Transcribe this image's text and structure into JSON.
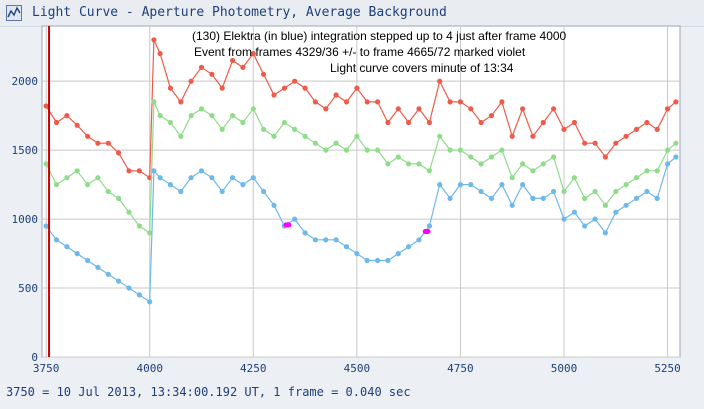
{
  "window": {
    "title": "Light Curve - Aperture Photometry, Average Background",
    "icon": "light-curve-app-icon"
  },
  "footer": {
    "text": "3750 = 10 Jul 2013, 13:34:00.192 UT, 1 frame = 0.040 sec"
  },
  "colors": {
    "background": "#eceff3",
    "plot_background": "#ffffff",
    "grid": "#c8c8c8",
    "axis_text": "#1f3f7a",
    "series_red": "#ef5b4a",
    "series_green": "#8fdc8a",
    "series_blue": "#6fb8ea",
    "event_marker": "#ff00ff",
    "cursor_line": "#cc0000"
  },
  "chart_data": {
    "type": "line",
    "title": "",
    "xlabel": "",
    "ylabel": "",
    "xlim": [
      3740,
      5280
    ],
    "ylim": [
      0,
      2400
    ],
    "x_ticks": [
      3750,
      4000,
      4250,
      4500,
      4750,
      5000,
      5250
    ],
    "y_ticks": [
      0,
      500,
      1000,
      1500,
      2000
    ],
    "grid": true,
    "annotations": [
      "(130) Elektra (in blue)  integration stepped up to 4 just after frame 4000",
      "Event from frames 4329/36 +/- to frame 4665/72  marked violet",
      "Light curve covers minute of 13:34"
    ],
    "cursor_frame": 3757,
    "event_frames": [
      [
        4329,
        4336
      ],
      [
        4665,
        4672
      ]
    ],
    "series": [
      {
        "color": "red",
        "x": [
          3750,
          3775,
          3800,
          3825,
          3850,
          3875,
          3900,
          3925,
          3950,
          3975,
          4000,
          4010,
          4025,
          4050,
          4075,
          4100,
          4125,
          4150,
          4175,
          4200,
          4225,
          4250,
          4275,
          4300,
          4325,
          4350,
          4375,
          4400,
          4425,
          4450,
          4475,
          4500,
          4525,
          4550,
          4575,
          4600,
          4625,
          4650,
          4675,
          4700,
          4725,
          4750,
          4775,
          4800,
          4825,
          4850,
          4875,
          4900,
          4925,
          4950,
          4975,
          5000,
          5025,
          5050,
          5075,
          5100,
          5125,
          5150,
          5175,
          5200,
          5225,
          5250,
          5270
        ],
        "values": [
          1820,
          1700,
          1750,
          1680,
          1600,
          1550,
          1550,
          1480,
          1350,
          1350,
          1300,
          2300,
          2200,
          1950,
          1850,
          2000,
          2100,
          2050,
          1950,
          2150,
          2100,
          2200,
          2050,
          1900,
          1950,
          2000,
          1950,
          1850,
          1800,
          1900,
          1850,
          1950,
          1850,
          1850,
          1700,
          1800,
          1700,
          1800,
          1700,
          2000,
          1850,
          1850,
          1800,
          1700,
          1750,
          1850,
          1600,
          1800,
          1600,
          1700,
          1800,
          1650,
          1700,
          1550,
          1550,
          1450,
          1550,
          1600,
          1650,
          1700,
          1650,
          1800,
          1850
        ]
      },
      {
        "color": "green",
        "x": [
          3750,
          3775,
          3800,
          3825,
          3850,
          3875,
          3900,
          3925,
          3950,
          3975,
          4000,
          4010,
          4025,
          4050,
          4075,
          4100,
          4125,
          4150,
          4175,
          4200,
          4225,
          4250,
          4275,
          4300,
          4325,
          4350,
          4375,
          4400,
          4425,
          4450,
          4475,
          4500,
          4525,
          4550,
          4575,
          4600,
          4625,
          4650,
          4675,
          4700,
          4725,
          4750,
          4775,
          4800,
          4825,
          4850,
          4875,
          4900,
          4925,
          4950,
          4975,
          5000,
          5025,
          5050,
          5075,
          5100,
          5125,
          5150,
          5175,
          5200,
          5225,
          5250,
          5270
        ],
        "values": [
          1400,
          1250,
          1300,
          1350,
          1250,
          1300,
          1200,
          1150,
          1050,
          950,
          900,
          1850,
          1750,
          1700,
          1600,
          1750,
          1800,
          1750,
          1650,
          1750,
          1700,
          1800,
          1650,
          1600,
          1700,
          1650,
          1600,
          1550,
          1500,
          1550,
          1500,
          1600,
          1500,
          1500,
          1400,
          1450,
          1400,
          1400,
          1350,
          1600,
          1500,
          1500,
          1450,
          1400,
          1450,
          1500,
          1300,
          1400,
          1350,
          1400,
          1450,
          1200,
          1300,
          1150,
          1200,
          1100,
          1200,
          1250,
          1300,
          1350,
          1350,
          1500,
          1550
        ]
      },
      {
        "color": "blue",
        "x": [
          3750,
          3775,
          3800,
          3825,
          3850,
          3875,
          3900,
          3925,
          3950,
          3975,
          4000,
          4010,
          4025,
          4050,
          4075,
          4100,
          4125,
          4150,
          4175,
          4200,
          4225,
          4250,
          4275,
          4300,
          4325,
          4350,
          4375,
          4400,
          4425,
          4450,
          4475,
          4500,
          4525,
          4550,
          4575,
          4600,
          4625,
          4650,
          4675,
          4700,
          4725,
          4750,
          4775,
          4800,
          4825,
          4850,
          4875,
          4900,
          4925,
          4950,
          4975,
          5000,
          5025,
          5050,
          5075,
          5100,
          5125,
          5150,
          5175,
          5200,
          5225,
          5250,
          5270
        ],
        "values": [
          950,
          850,
          800,
          750,
          700,
          650,
          600,
          550,
          500,
          450,
          400,
          1350,
          1300,
          1250,
          1200,
          1300,
          1350,
          1300,
          1200,
          1300,
          1250,
          1300,
          1200,
          1100,
          950,
          1000,
          900,
          850,
          850,
          850,
          800,
          750,
          700,
          700,
          700,
          750,
          800,
          850,
          950,
          1250,
          1150,
          1250,
          1250,
          1200,
          1150,
          1250,
          1100,
          1250,
          1150,
          1150,
          1200,
          1000,
          1050,
          950,
          1000,
          900,
          1050,
          1100,
          1150,
          1200,
          1150,
          1400,
          1450
        ]
      }
    ]
  }
}
